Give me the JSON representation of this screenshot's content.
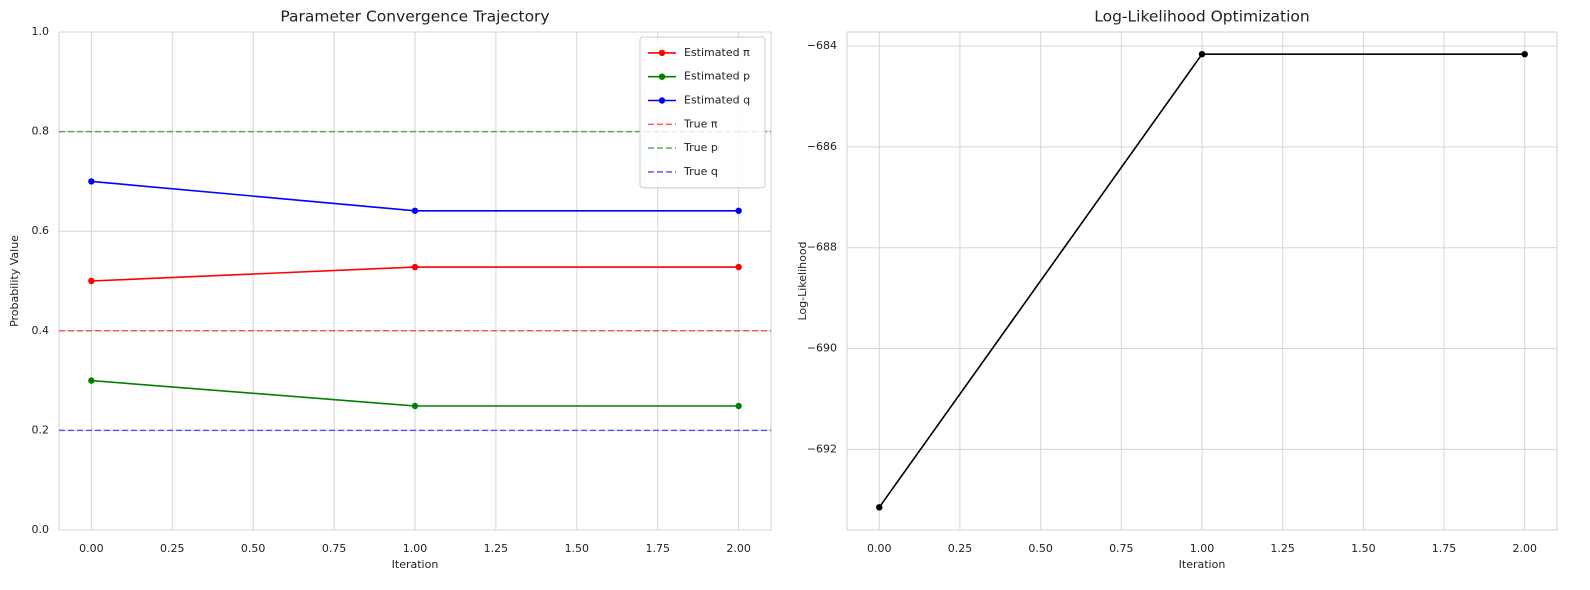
{
  "chart_data": [
    {
      "type": "line",
      "title": "Parameter Convergence Trajectory",
      "xlabel": "Iteration",
      "ylabel": "Probability Value",
      "x": [
        0,
        1,
        2
      ],
      "series": [
        {
          "name": "Estimated π",
          "color": "#ff0000",
          "values": [
            0.5,
            0.528,
            0.528
          ]
        },
        {
          "name": "Estimated p",
          "color": "#008000",
          "values": [
            0.3,
            0.249,
            0.249
          ]
        },
        {
          "name": "Estimated q",
          "color": "#0000ff",
          "values": [
            0.7,
            0.641,
            0.641
          ]
        }
      ],
      "hlines": [
        {
          "name": "True π",
          "color": "#ff0000",
          "value": 0.4
        },
        {
          "name": "True p",
          "color": "#008000",
          "value": 0.8
        },
        {
          "name": "True q",
          "color": "#0000ff",
          "value": 0.2
        }
      ],
      "xlim": [
        -0.1,
        2.1
      ],
      "ylim": [
        0,
        1
      ],
      "xticks": [
        {
          "value": 0,
          "label": "0.00"
        },
        0.25,
        {
          "value": 0.5,
          "label": "0.50"
        },
        0.75,
        {
          "value": 1,
          "label": "1.00"
        },
        1.25,
        {
          "value": 1.5,
          "label": "1.50"
        },
        1.75,
        {
          "value": 2,
          "label": "2.00"
        }
      ],
      "yticks": [
        {
          "value": 0,
          "label": "0.0"
        },
        0.2,
        0.4,
        0.6,
        0.8,
        {
          "value": 1,
          "label": "1.0"
        }
      ],
      "grid": true,
      "legend": "upper right"
    },
    {
      "type": "line",
      "title": "Log-Likelihood Optimization",
      "xlabel": "Iteration",
      "ylabel": "Log-Likelihood",
      "x": [
        0,
        1,
        2
      ],
      "series": [
        {
          "color": "#000000",
          "values": [
            -693.15,
            -684.16,
            -684.16
          ]
        }
      ],
      "xlim": [
        -0.1,
        2.1
      ],
      "ylim": [
        -693.6,
        -683.72
      ],
      "xticks": [
        {
          "value": 0,
          "label": "0.00"
        },
        0.25,
        {
          "value": 0.5,
          "label": "0.50"
        },
        0.75,
        {
          "value": 1,
          "label": "1.00"
        },
        1.25,
        {
          "value": 1.5,
          "label": "1.50"
        },
        1.75,
        {
          "value": 2,
          "label": "2.00"
        }
      ],
      "yticks": [
        {
          "value": -692,
          "label": "−692"
        },
        {
          "value": -690,
          "label": "−690"
        },
        {
          "value": -688,
          "label": "−688"
        },
        {
          "value": -686,
          "label": "−686"
        },
        {
          "value": -684,
          "label": "−684"
        }
      ],
      "grid": true
    }
  ]
}
